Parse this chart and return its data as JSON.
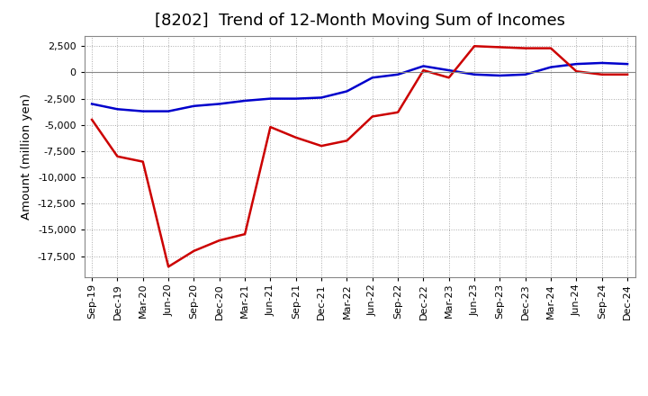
{
  "title": "[8202]  Trend of 12-Month Moving Sum of Incomes",
  "ylabel": "Amount (million yen)",
  "x_labels": [
    "Sep-19",
    "Dec-19",
    "Mar-20",
    "Jun-20",
    "Sep-20",
    "Dec-20",
    "Mar-21",
    "Jun-21",
    "Sep-21",
    "Dec-21",
    "Mar-22",
    "Jun-22",
    "Sep-22",
    "Dec-22",
    "Mar-23",
    "Jun-23",
    "Sep-23",
    "Dec-23",
    "Mar-24",
    "Jun-24",
    "Sep-24",
    "Dec-24"
  ],
  "ordinary_income": [
    -3000,
    -3500,
    -3700,
    -3700,
    -3200,
    -3000,
    -2700,
    -2500,
    -2500,
    -2400,
    -1800,
    -500,
    -200,
    600,
    200,
    -200,
    -300,
    -200,
    500,
    800,
    900,
    800
  ],
  "net_income": [
    -4500,
    -8000,
    -8500,
    -18500,
    -17000,
    -16000,
    -15400,
    -5200,
    -6200,
    -7000,
    -6500,
    -4200,
    -3800,
    200,
    -500,
    2500,
    2400,
    2300,
    2300,
    100,
    -200,
    -200
  ],
  "ordinary_income_color": "#0000cc",
  "net_income_color": "#cc0000",
  "ylim": [
    -19500,
    3500
  ],
  "yticks": [
    2500,
    0,
    -2500,
    -5000,
    -7500,
    -10000,
    -12500,
    -15000,
    -17500
  ],
  "background_color": "#ffffff",
  "grid_color": "#aaaaaa",
  "title_fontsize": 13,
  "label_fontsize": 9.5,
  "tick_fontsize": 8,
  "legend_fontsize": 9.5
}
